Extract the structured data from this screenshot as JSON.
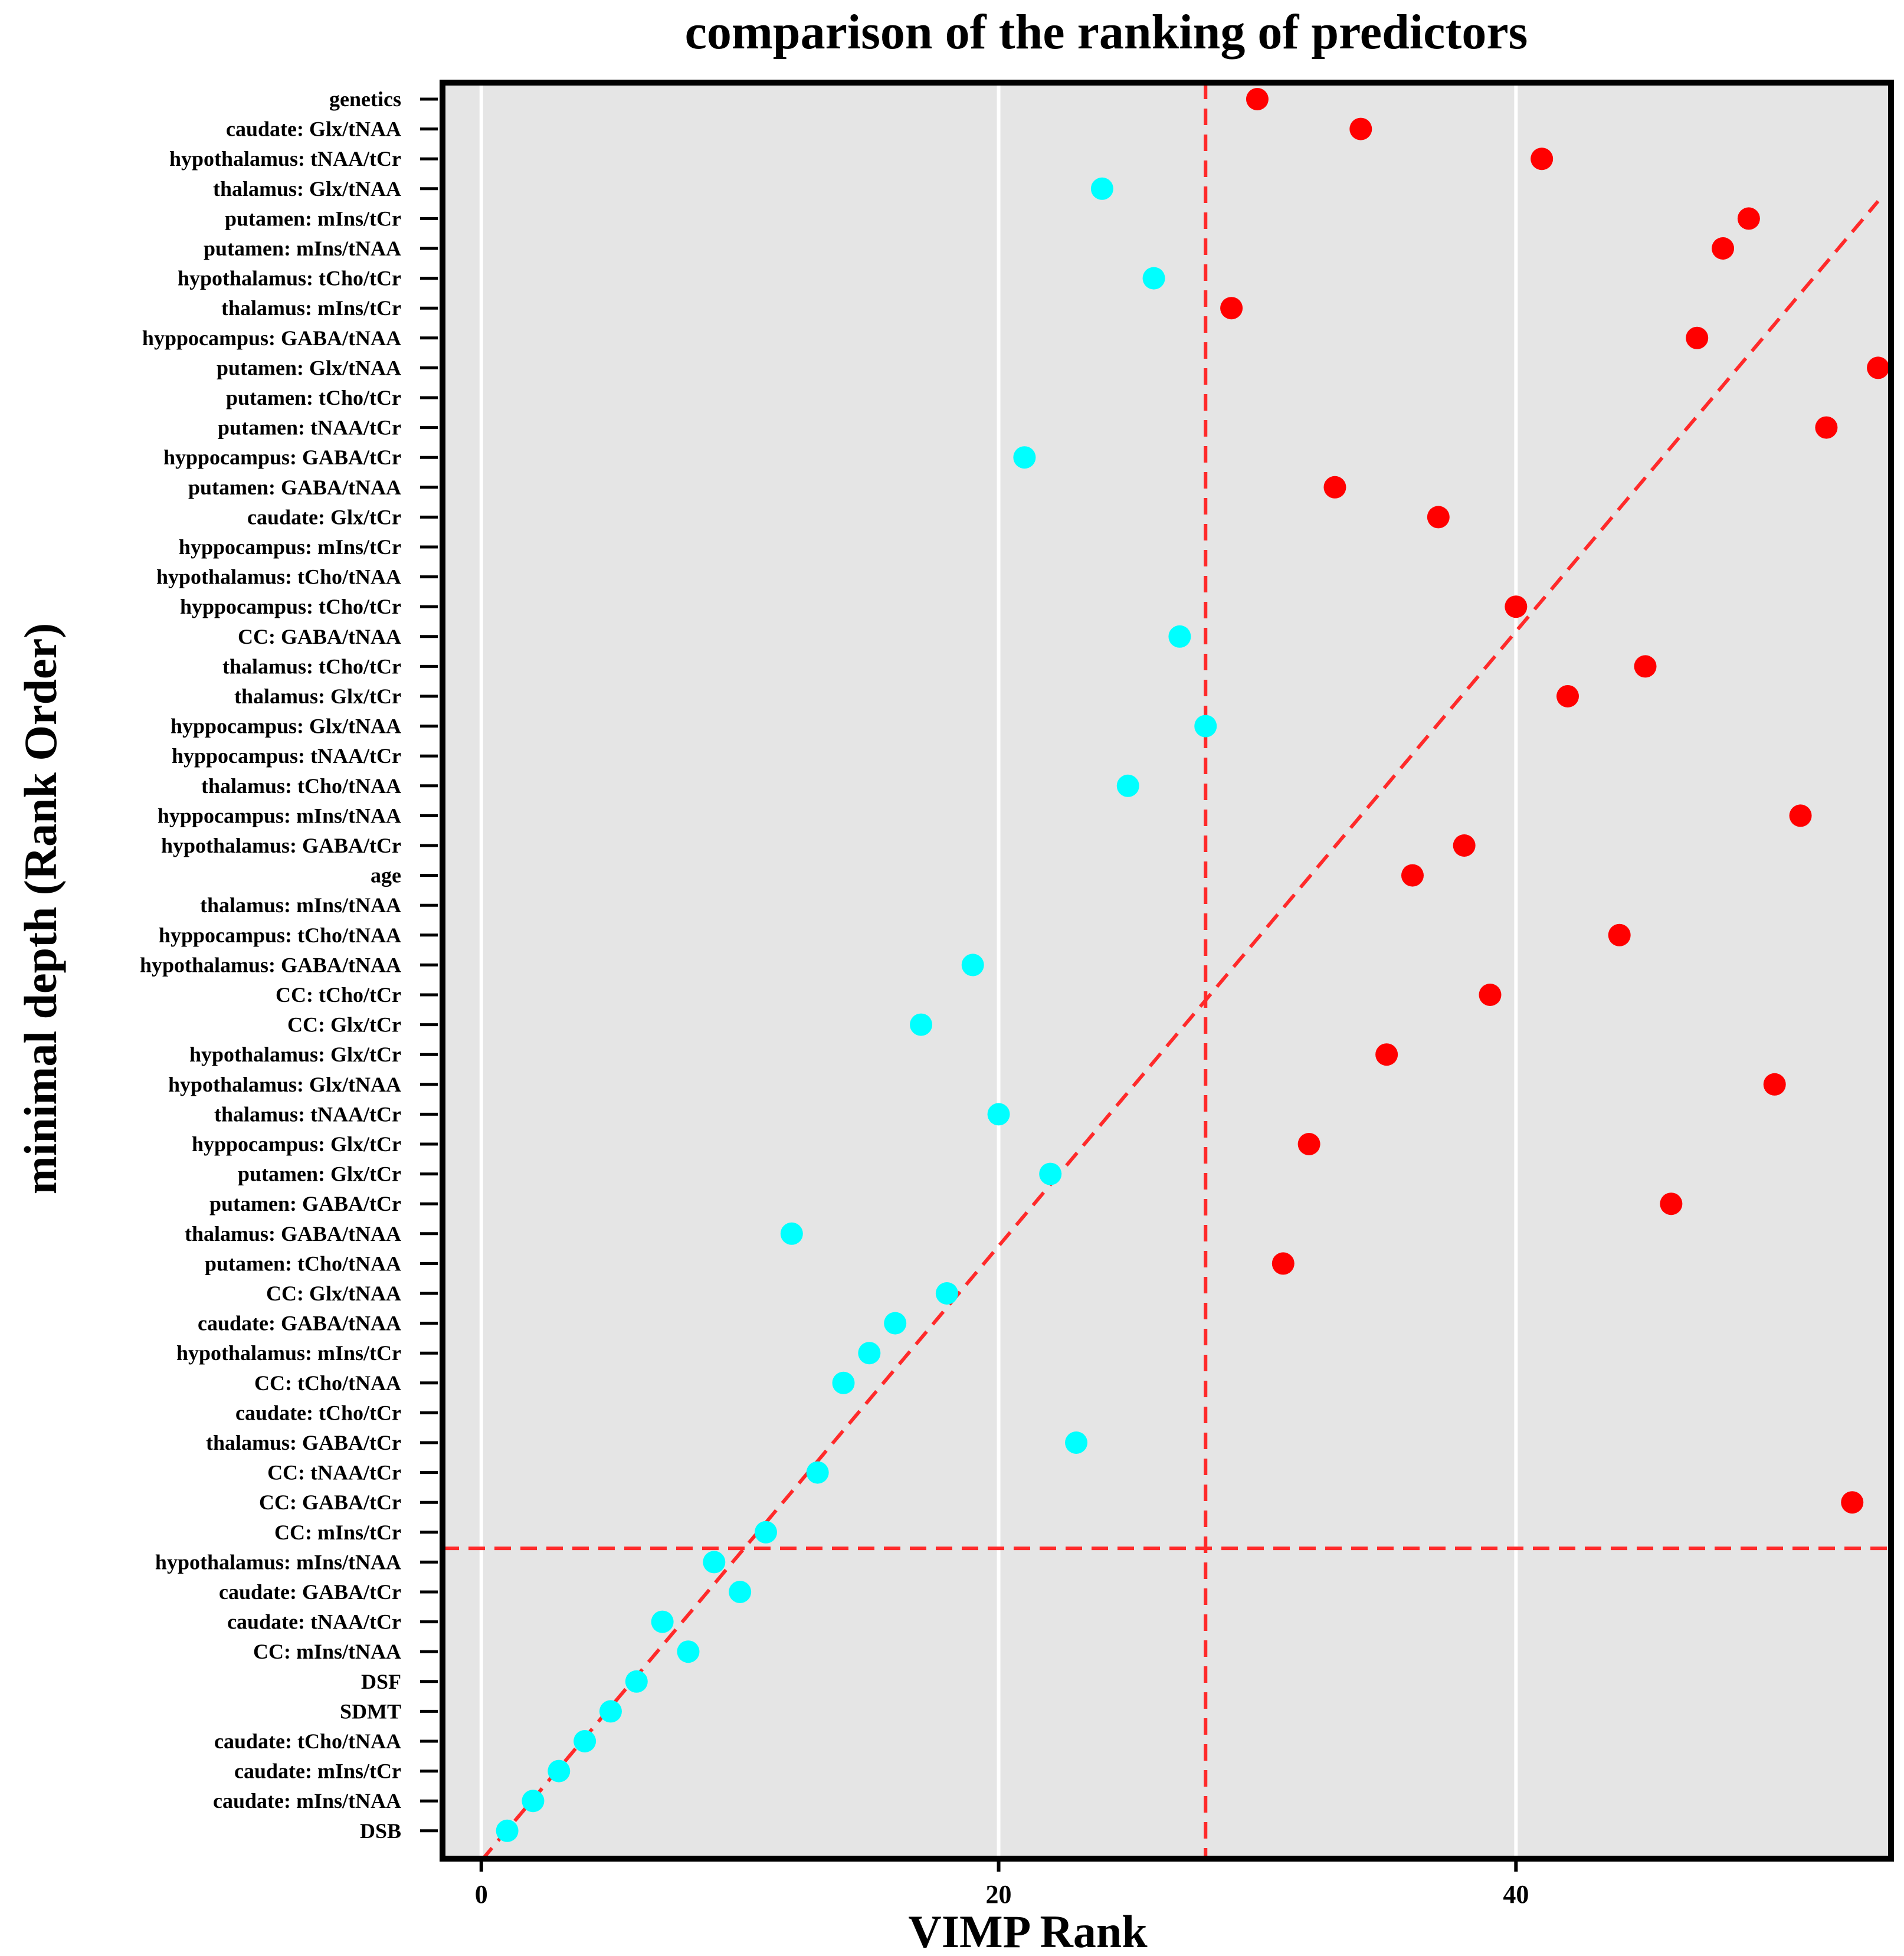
{
  "chart_data": {
    "type": "scatter",
    "title": "comparison of the ranking of predictors",
    "xlabel": "VIMP Rank",
    "ylabel": "minimal depth (Rank Order)",
    "xlim": [
      -1.5,
      54.5
    ],
    "xticks": [
      0,
      20,
      40
    ],
    "grid": true,
    "colors": {
      "below_line": "#00ffff",
      "above_line": "#ff0000",
      "ref_lines": "#ff2a2a",
      "panel": "#e5e5e5",
      "grid": "#ffffff"
    },
    "reference_lines": {
      "vline_x": 28,
      "hline_rank": 10,
      "diagonal": [
        [
          0,
          0
        ],
        [
          54,
          54
        ]
      ]
    },
    "categories": [
      "genetics",
      "caudate: Glx/tNAA",
      "hypothalamus: tNAA/tCr",
      "thalamus: Glx/tNAA",
      "putamen: mIns/tCr",
      "putamen: mIns/tNAA",
      "hypothalamus: tCho/tCr",
      "thalamus: mIns/tCr",
      "hyppocampus: GABA/tNAA",
      "putamen: Glx/tNAA",
      "putamen: tCho/tCr",
      "putamen: tNAA/tCr",
      "hyppocampus: GABA/tCr",
      "putamen: GABA/tNAA",
      "caudate: Glx/tCr",
      "hyppocampus: mIns/tCr",
      "hypothalamus: tCho/tNAA",
      "hyppocampus: tCho/tCr",
      "CC: GABA/tNAA",
      "thalamus: tCho/tCr",
      "thalamus: Glx/tCr",
      "hyppocampus: Glx/tNAA",
      "hyppocampus: tNAA/tCr",
      "thalamus: tCho/tNAA",
      "hyppocampus: mIns/tNAA",
      "hypothalamus: GABA/tCr",
      "age",
      "thalamus: mIns/tNAA",
      "hyppocampus: tCho/tNAA",
      "hypothalamus: GABA/tNAA",
      "CC: tCho/tCr",
      "CC: Glx/tCr",
      "hypothalamus: Glx/tCr",
      "hypothalamus: Glx/tNAA",
      "thalamus: tNAA/tCr",
      "hyppocampus: Glx/tCr",
      "putamen: Glx/tCr",
      "putamen: GABA/tCr",
      "thalamus: GABA/tNAA",
      "putamen: tCho/tNAA",
      "CC: Glx/tNAA",
      "caudate: GABA/tNAA",
      "hypothalamus: mIns/tCr",
      "CC: tCho/tNAA",
      "caudate: tCho/tCr",
      "thalamus: GABA/tCr",
      "CC: tNAA/tCr",
      "CC: GABA/tCr",
      "CC: mIns/tCr",
      "hypothalamus: mIns/tNAA",
      "caudate: GABA/tCr",
      "caudate: tNAA/tCr",
      "CC: mIns/tNAA",
      "DSF",
      "SDMT",
      "caudate: tCho/tNAA",
      "caudate: mIns/tCr",
      "caudate: mIns/tNAA",
      "DSB"
    ],
    "series": [
      {
        "name": "points",
        "points": [
          {
            "label": "genetics",
            "vimp_rank": 30,
            "color": "red"
          },
          {
            "label": "caudate: Glx/tNAA",
            "vimp_rank": 34,
            "color": "red"
          },
          {
            "label": "hypothalamus: tNAA/tCr",
            "vimp_rank": 41,
            "color": "red"
          },
          {
            "label": "thalamus: Glx/tNAA",
            "vimp_rank": 24,
            "color": "cyan"
          },
          {
            "label": "putamen: mIns/tCr",
            "vimp_rank": 49,
            "color": "red"
          },
          {
            "label": "putamen: mIns/tNAA",
            "vimp_rank": 48,
            "color": "red"
          },
          {
            "label": "hypothalamus: tCho/tCr",
            "vimp_rank": 26,
            "color": "cyan"
          },
          {
            "label": "thalamus: mIns/tCr",
            "vimp_rank": 29,
            "color": "red"
          },
          {
            "label": "hyppocampus: GABA/tNAA",
            "vimp_rank": 47,
            "color": "red"
          },
          {
            "label": "putamen: Glx/tNAA",
            "vimp_rank": 54,
            "color": "red"
          },
          {
            "label": "putamen: tNAA/tCr",
            "vimp_rank": 52,
            "color": "red"
          },
          {
            "label": "hyppocampus: GABA/tCr",
            "vimp_rank": 21,
            "color": "cyan"
          },
          {
            "label": "putamen: GABA/tNAA",
            "vimp_rank": 33,
            "color": "red"
          },
          {
            "label": "caudate: Glx/tCr",
            "vimp_rank": 37,
            "color": "red"
          },
          {
            "label": "hyppocampus: tCho/tCr",
            "vimp_rank": 40,
            "color": "red"
          },
          {
            "label": "CC: GABA/tNAA",
            "vimp_rank": 27,
            "color": "cyan"
          },
          {
            "label": "thalamus: tCho/tCr",
            "vimp_rank": 45,
            "color": "red"
          },
          {
            "label": "thalamus: Glx/tCr",
            "vimp_rank": 42,
            "color": "red"
          },
          {
            "label": "hyppocampus: Glx/tNAA",
            "vimp_rank": 28,
            "color": "cyan"
          },
          {
            "label": "thalamus: tCho/tNAA",
            "vimp_rank": 25,
            "color": "cyan"
          },
          {
            "label": "hyppocampus: mIns/tNAA",
            "vimp_rank": 51,
            "color": "red"
          },
          {
            "label": "hypothalamus: GABA/tCr",
            "vimp_rank": 38,
            "color": "red"
          },
          {
            "label": "age",
            "vimp_rank": 36,
            "color": "red"
          },
          {
            "label": "hyppocampus: tCho/tNAA",
            "vimp_rank": 44,
            "color": "red"
          },
          {
            "label": "hypothalamus: GABA/tNAA",
            "vimp_rank": 19,
            "color": "cyan"
          },
          {
            "label": "CC: tCho/tCr",
            "vimp_rank": 39,
            "color": "red"
          },
          {
            "label": "CC: Glx/tCr",
            "vimp_rank": 17,
            "color": "cyan"
          },
          {
            "label": "hypothalamus: Glx/tCr",
            "vimp_rank": 35,
            "color": "red"
          },
          {
            "label": "hypothalamus: Glx/tNAA",
            "vimp_rank": 50,
            "color": "red"
          },
          {
            "label": "thalamus: tNAA/tCr",
            "vimp_rank": 20,
            "color": "cyan"
          },
          {
            "label": "hyppocampus: Glx/tCr",
            "vimp_rank": 32,
            "color": "red"
          },
          {
            "label": "putamen: Glx/tCr",
            "vimp_rank": 22,
            "color": "cyan"
          },
          {
            "label": "putamen: GABA/tCr",
            "vimp_rank": 46,
            "color": "red"
          },
          {
            "label": "thalamus: GABA/tNAA",
            "vimp_rank": 12,
            "color": "cyan"
          },
          {
            "label": "putamen: tCho/tNAA",
            "vimp_rank": 31,
            "color": "red"
          },
          {
            "label": "CC: Glx/tNAA",
            "vimp_rank": 18,
            "color": "cyan"
          },
          {
            "label": "caudate: GABA/tNAA",
            "vimp_rank": 16,
            "color": "cyan"
          },
          {
            "label": "hypothalamus: mIns/tCr",
            "vimp_rank": 15,
            "color": "cyan"
          },
          {
            "label": "CC: tCho/tNAA",
            "vimp_rank": 14,
            "color": "cyan"
          },
          {
            "label": "thalamus: GABA/tCr",
            "vimp_rank": 23,
            "color": "cyan"
          },
          {
            "label": "CC: tNAA/tCr",
            "vimp_rank": 13,
            "color": "cyan"
          },
          {
            "label": "CC: GABA/tCr",
            "vimp_rank": 53,
            "color": "red"
          },
          {
            "label": "CC: mIns/tCr",
            "vimp_rank": 11,
            "color": "cyan"
          },
          {
            "label": "hypothalamus: mIns/tNAA",
            "vimp_rank": 9,
            "color": "cyan"
          },
          {
            "label": "caudate: GABA/tCr",
            "vimp_rank": 10,
            "color": "cyan"
          },
          {
            "label": "caudate: tNAA/tCr",
            "vimp_rank": 7,
            "color": "cyan"
          },
          {
            "label": "CC: mIns/tNAA",
            "vimp_rank": 8,
            "color": "cyan"
          },
          {
            "label": "DSF",
            "vimp_rank": 6,
            "color": "cyan"
          },
          {
            "label": "SDMT",
            "vimp_rank": 5,
            "color": "cyan"
          },
          {
            "label": "caudate: tCho/tNAA",
            "vimp_rank": 4,
            "color": "cyan"
          },
          {
            "label": "caudate: mIns/tCr",
            "vimp_rank": 3,
            "color": "cyan"
          },
          {
            "label": "caudate: mIns/tNAA",
            "vimp_rank": 2,
            "color": "cyan"
          },
          {
            "label": "DSB",
            "vimp_rank": 1,
            "color": "cyan"
          }
        ]
      }
    ]
  }
}
